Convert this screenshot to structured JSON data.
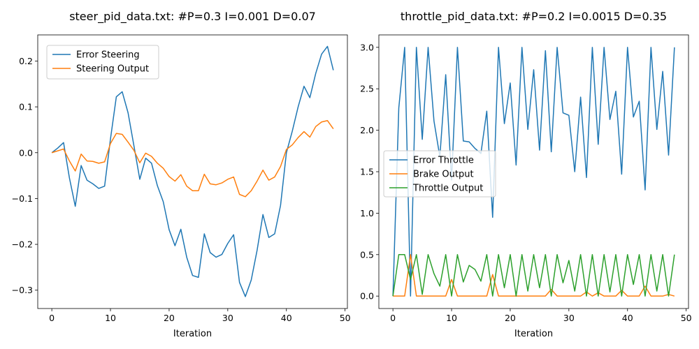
{
  "chart_data": [
    {
      "type": "line",
      "title": "steer_pid_data.txt: #P=0.3 I=0.001 D=0.07",
      "xlabel": "Iteration",
      "ylabel": "",
      "xlim": [
        -2.4,
        50.4
      ],
      "ylim": [
        -0.34,
        0.257
      ],
      "xticks": [
        0,
        10,
        20,
        30,
        40,
        50
      ],
      "yticks": [
        -0.3,
        -0.2,
        -0.1,
        0.0,
        0.1,
        0.2
      ],
      "ytick_labels": [
        "−0.3",
        "−0.2",
        "−0.1",
        "0.0",
        "0.1",
        "0.2"
      ],
      "grid": false,
      "legend": "upper-left",
      "series": [
        {
          "name": "Error Steering",
          "color": "#1f77b4",
          "x": [
            0,
            1,
            2,
            3,
            4,
            5,
            6,
            7,
            8,
            9,
            10,
            11,
            12,
            13,
            14,
            15,
            16,
            17,
            18,
            19,
            20,
            21,
            22,
            23,
            24,
            25,
            26,
            27,
            28,
            29,
            30,
            31,
            32,
            33,
            34,
            35,
            36,
            37,
            38,
            39,
            40,
            41,
            42,
            43,
            44,
            45,
            46,
            47,
            48
          ],
          "y": [
            0.0,
            0.01,
            0.022,
            -0.055,
            -0.117,
            -0.028,
            -0.06,
            -0.068,
            -0.078,
            -0.073,
            0.03,
            0.122,
            0.133,
            0.087,
            0.015,
            -0.058,
            -0.012,
            -0.023,
            -0.072,
            -0.107,
            -0.168,
            -0.203,
            -0.167,
            -0.228,
            -0.268,
            -0.272,
            -0.177,
            -0.218,
            -0.228,
            -0.222,
            -0.198,
            -0.179,
            -0.283,
            -0.314,
            -0.278,
            -0.213,
            -0.135,
            -0.185,
            -0.177,
            -0.115,
            0.0,
            0.047,
            0.1,
            0.145,
            0.12,
            0.173,
            0.215,
            0.232,
            0.18
          ]
        },
        {
          "name": "Steering Output",
          "color": "#ff7f0e",
          "x": [
            0,
            1,
            2,
            3,
            4,
            5,
            6,
            7,
            8,
            9,
            10,
            11,
            12,
            13,
            14,
            15,
            16,
            17,
            18,
            19,
            20,
            21,
            22,
            23,
            24,
            25,
            26,
            27,
            28,
            29,
            30,
            31,
            32,
            33,
            34,
            35,
            36,
            37,
            38,
            39,
            40,
            41,
            42,
            43,
            44,
            45,
            46,
            47,
            48
          ],
          "y": [
            0.0,
            0.004,
            0.008,
            -0.018,
            -0.04,
            -0.003,
            -0.018,
            -0.019,
            -0.023,
            -0.02,
            0.02,
            0.042,
            0.04,
            0.023,
            0.005,
            -0.022,
            -0.001,
            -0.008,
            -0.023,
            -0.034,
            -0.052,
            -0.062,
            -0.048,
            -0.073,
            -0.083,
            -0.083,
            -0.047,
            -0.068,
            -0.07,
            -0.066,
            -0.058,
            -0.053,
            -0.091,
            -0.096,
            -0.083,
            -0.062,
            -0.038,
            -0.06,
            -0.053,
            -0.03,
            0.007,
            0.017,
            0.033,
            0.046,
            0.034,
            0.057,
            0.067,
            0.07,
            0.052
          ]
        }
      ]
    },
    {
      "type": "line",
      "title": "throttle_pid_data.txt: #P=0.2 I=0.0015 D=0.35",
      "xlabel": "Iteration",
      "ylabel": "",
      "xlim": [
        -2.4,
        50.4
      ],
      "ylim": [
        -0.15,
        3.15
      ],
      "xticks": [
        0,
        10,
        20,
        30,
        40,
        50
      ],
      "yticks": [
        0.0,
        0.5,
        1.0,
        1.5,
        2.0,
        2.5,
        3.0
      ],
      "ytick_labels": [
        "0.0",
        "0.5",
        "1.0",
        "1.5",
        "2.0",
        "2.5",
        "3.0"
      ],
      "grid": false,
      "legend": "center-left",
      "series": [
        {
          "name": "Error Throttle",
          "color": "#1f77b4",
          "x": [
            0,
            1,
            2,
            3,
            4,
            5,
            6,
            7,
            8,
            9,
            10,
            11,
            12,
            13,
            14,
            15,
            16,
            17,
            18,
            19,
            20,
            21,
            22,
            23,
            24,
            25,
            26,
            27,
            28,
            29,
            30,
            31,
            32,
            33,
            34,
            35,
            36,
            37,
            38,
            39,
            40,
            41,
            42,
            43,
            44,
            45,
            46,
            47,
            48
          ],
          "y": [
            0.0,
            2.27,
            3.0,
            0.0,
            3.0,
            1.89,
            3.0,
            2.11,
            1.68,
            2.67,
            1.4,
            3.0,
            1.87,
            1.86,
            1.78,
            1.72,
            2.23,
            0.95,
            3.0,
            2.08,
            2.57,
            1.58,
            3.0,
            2.01,
            2.73,
            1.76,
            2.96,
            1.74,
            3.0,
            2.21,
            2.18,
            1.5,
            2.4,
            1.43,
            3.0,
            1.83,
            3.0,
            2.13,
            2.47,
            1.47,
            3.0,
            2.16,
            2.35,
            1.28,
            3.0,
            2.01,
            2.71,
            1.7,
            3.0
          ]
        },
        {
          "name": "Brake Output",
          "color": "#ff7f0e",
          "x": [
            0,
            1,
            2,
            3,
            4,
            5,
            6,
            7,
            8,
            9,
            10,
            11,
            12,
            13,
            14,
            15,
            16,
            17,
            18,
            19,
            20,
            21,
            22,
            23,
            24,
            25,
            26,
            27,
            28,
            29,
            30,
            31,
            32,
            33,
            34,
            35,
            36,
            37,
            38,
            39,
            40,
            41,
            42,
            43,
            44,
            45,
            46,
            47,
            48
          ],
          "y": [
            0.0,
            0.0,
            0.0,
            0.5,
            0.0,
            0.0,
            0.0,
            0.0,
            0.0,
            0.0,
            0.2,
            0.0,
            0.0,
            0.0,
            0.0,
            0.0,
            0.0,
            0.26,
            0.0,
            0.0,
            0.0,
            0.0,
            0.0,
            0.0,
            0.0,
            0.0,
            0.0,
            0.08,
            0.0,
            0.0,
            0.0,
            0.0,
            0.0,
            0.05,
            0.0,
            0.04,
            0.0,
            0.0,
            0.0,
            0.07,
            0.0,
            0.0,
            0.0,
            0.12,
            0.0,
            0.0,
            0.0,
            0.02,
            0.0
          ]
        },
        {
          "name": "Throttle Output",
          "color": "#2ca02c",
          "x": [
            0,
            1,
            2,
            3,
            4,
            5,
            6,
            7,
            8,
            9,
            10,
            11,
            12,
            13,
            14,
            15,
            16,
            17,
            18,
            19,
            20,
            21,
            22,
            23,
            24,
            25,
            26,
            27,
            28,
            29,
            30,
            31,
            32,
            33,
            34,
            35,
            36,
            37,
            38,
            39,
            40,
            41,
            42,
            43,
            44,
            45,
            46,
            47,
            48
          ],
          "y": [
            0.0,
            0.5,
            0.5,
            0.2,
            0.5,
            0.02,
            0.5,
            0.27,
            0.12,
            0.5,
            0.0,
            0.5,
            0.17,
            0.37,
            0.32,
            0.18,
            0.5,
            0.0,
            0.5,
            0.1,
            0.5,
            0.0,
            0.5,
            0.06,
            0.5,
            0.1,
            0.5,
            0.0,
            0.5,
            0.16,
            0.43,
            0.06,
            0.5,
            0.0,
            0.5,
            0.0,
            0.5,
            0.05,
            0.5,
            0.0,
            0.5,
            0.14,
            0.5,
            0.0,
            0.5,
            0.06,
            0.5,
            0.0,
            0.5
          ]
        }
      ]
    }
  ]
}
